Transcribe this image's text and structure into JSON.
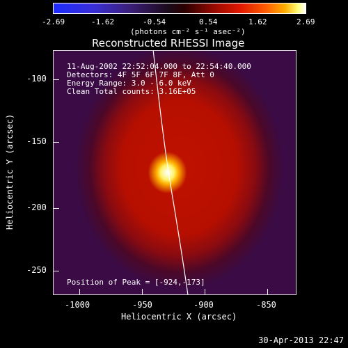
{
  "colorbar": {
    "ticks": [
      "-2.69",
      "-1.62",
      "-0.54",
      "0.54",
      "1.62",
      "2.69"
    ],
    "units": "(photons cm⁻² s⁻¹ asec⁻²)"
  },
  "plot": {
    "title": "Reconstructed RHESSI Image",
    "info_lines": [
      "11-Aug-2002 22:52:04.000 to 22:54:40.000",
      "Detectors: 4F 5F 6F 7F 8F, Att 0",
      "Energy Range: 3.0 - 6.0 keV",
      "Clean    Total counts: 3.16E+05"
    ],
    "peak_label": "Position of Peak = [-924,-173]",
    "x_axis_label": "Heliocentric X (arcsec)",
    "y_axis_label": "Heliocentric Y (arcsec)",
    "x_ticks": [
      "-1000",
      "-950",
      "-900",
      "-850"
    ],
    "y_ticks": [
      "-100",
      "-150",
      "-200",
      "-250"
    ]
  },
  "footer": {
    "timestamp": "30-Apr-2013 22:47"
  },
  "colors": {
    "background": "#000000",
    "limb_line": "#ffffff"
  }
}
